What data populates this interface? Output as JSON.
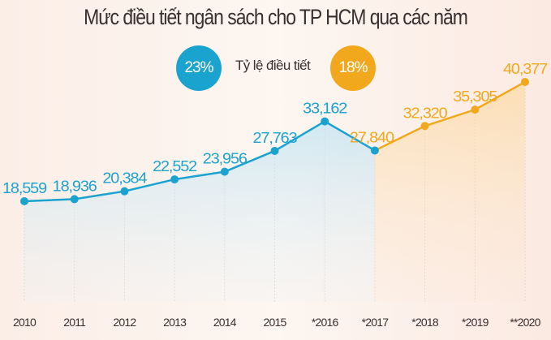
{
  "chart_data": {
    "type": "line",
    "title": "Mức điều tiết ngân sách cho TP HCM qua các năm",
    "categories": [
      "2010",
      "2011",
      "2012",
      "2013",
      "2014",
      "2015",
      "*2016",
      "*2017",
      "*2018",
      "*2019",
      "**2020"
    ],
    "values": [
      18559,
      18936,
      20384,
      22552,
      23956,
      27763,
      33162,
      27840,
      32320,
      35305,
      40377
    ],
    "value_labels": [
      "18,559",
      "18,936",
      "20,384",
      "22,552",
      "23,956",
      "27,763",
      "33,162",
      "27,840",
      "32,320",
      "35,305",
      "40,377"
    ],
    "series": [
      {
        "name": "23%",
        "from_index": 0,
        "to_index": 7,
        "color": "#1ba3cf"
      },
      {
        "name": "18%",
        "from_index": 7,
        "to_index": 10,
        "color": "#f2a81d"
      }
    ],
    "legend": {
      "label": "Tỷ lệ điều tiết",
      "placement": "top-center"
    },
    "xlabel": "",
    "ylabel": "",
    "ylim": [
      0,
      41000
    ],
    "grid": "vertical"
  }
}
